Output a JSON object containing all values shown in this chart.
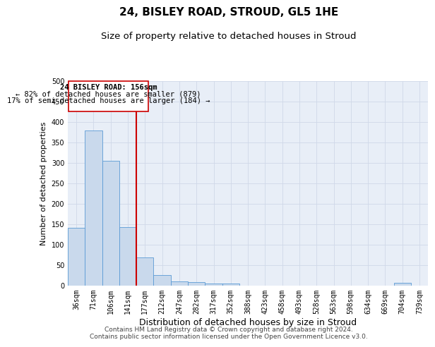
{
  "title": "24, BISLEY ROAD, STROUD, GL5 1HE",
  "subtitle": "Size of property relative to detached houses in Stroud",
  "xlabel": "Distribution of detached houses by size in Stroud",
  "ylabel": "Number of detached properties",
  "footer_line1": "Contains HM Land Registry data © Crown copyright and database right 2024.",
  "footer_line2": "Contains public sector information licensed under the Open Government Licence v3.0.",
  "annotation_line1": "24 BISLEY ROAD: 156sqm",
  "annotation_line2": "← 82% of detached houses are smaller (879)",
  "annotation_line3": "17% of semi-detached houses are larger (184) →",
  "bin_labels": [
    "36sqm",
    "71sqm",
    "106sqm",
    "141sqm",
    "177sqm",
    "212sqm",
    "247sqm",
    "282sqm",
    "317sqm",
    "352sqm",
    "388sqm",
    "423sqm",
    "458sqm",
    "493sqm",
    "528sqm",
    "563sqm",
    "598sqm",
    "634sqm",
    "669sqm",
    "704sqm",
    "739sqm"
  ],
  "bin_values": [
    140,
    378,
    304,
    142,
    68,
    25,
    10,
    8,
    5,
    5,
    0,
    0,
    0,
    0,
    0,
    0,
    0,
    0,
    0,
    6,
    0
  ],
  "bar_color": "#c9d9ec",
  "bar_edge_color": "#5b9bd5",
  "red_line_x": 3.5,
  "ylim": [
    0,
    500
  ],
  "yticks": [
    0,
    50,
    100,
    150,
    200,
    250,
    300,
    350,
    400,
    450,
    500
  ],
  "grid_color": "#d0d8e8",
  "bg_color": "#e8eef7",
  "annotation_box_color": "#ffffff",
  "annotation_box_edge": "#cc0000",
  "red_line_color": "#cc0000",
  "title_fontsize": 11,
  "subtitle_fontsize": 9.5,
  "xlabel_fontsize": 9,
  "ylabel_fontsize": 8,
  "tick_fontsize": 7,
  "annotation_fontsize": 7.5,
  "footer_fontsize": 6.5
}
